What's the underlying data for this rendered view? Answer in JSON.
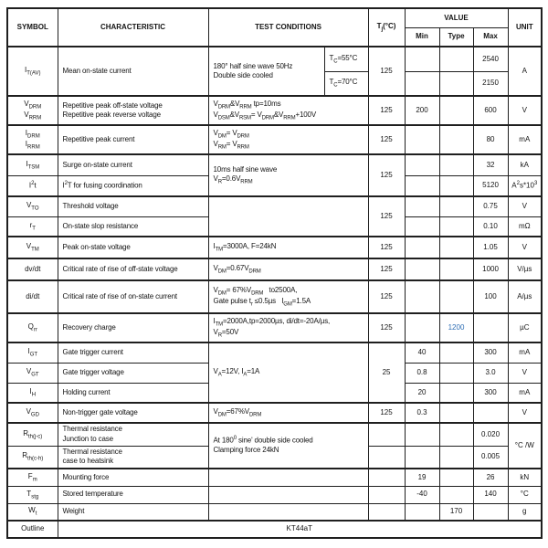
{
  "colors": {
    "border": "#1f1f1f",
    "text": "#141414",
    "accent_blue": "#2e6db4",
    "page_bg": "#ffffff"
  },
  "header": {
    "symbol": "SYMBOL",
    "characteristic": "CHARACTERISTIC",
    "test_conditions": "TEST CONDITIONS",
    "tj": "T_{j}(°C)",
    "value": "VALUE",
    "min": "Min",
    "type": "Type",
    "max": "Max",
    "unit": "UNIT"
  },
  "rows": {
    "itav": {
      "symbol": "I_{T(AV)}",
      "characteristic": "Mean on-state current",
      "conditions": "180° half sine wave 50Hz\nDouble side cooled",
      "cond_case1": "T_{C}=55°C",
      "cond_case2": "T_{C}=70°C",
      "tj": "125",
      "max1": "2540",
      "max2": "2150",
      "unit": "A"
    },
    "vdrm": {
      "symbol": "V_{DRM}\nV_{RRM}",
      "characteristic": "Repetitive peak off-state voltage\nRepetitive peak reverse voltage",
      "conditions": "V_{DRM}&V_{RRM} tp=10ms\nV_{DSM}&V_{RSM}= V_{DRM}&V_{RRM}+100V",
      "tj": "125",
      "min": "200",
      "max": "600",
      "unit": "V"
    },
    "idrm": {
      "symbol": "I_{DRM}\nI_{RRM}",
      "characteristic": "Repetitive peak current",
      "conditions": "V_{DM}= V_{DRM}\nV_{RM}= V_{RRM}",
      "tj": "125",
      "max": "80",
      "unit": "mA"
    },
    "itsm": {
      "symbol": "I_{TSM}",
      "characteristic": "Surge on-state current",
      "conditions": "10ms half sine wave\nV_{R}=0.6V_{RRM}",
      "tj": "125",
      "max": "32",
      "unit": "kA"
    },
    "i2t": {
      "symbol": "I^{2}t",
      "characteristic": "I^{2}T for fusing coordination",
      "max": "5120",
      "unit": "A^{2}s*10^{3}"
    },
    "vto": {
      "symbol": "V_{TO}",
      "characteristic": "Threshold voltage",
      "tj": "125",
      "max": "0.75",
      "unit": "V"
    },
    "rt": {
      "symbol": "r_{T}",
      "characteristic": "On-state slop resistance",
      "max": "0.10",
      "unit": "mΩ"
    },
    "vtm": {
      "symbol": "V_{TM}",
      "characteristic": "Peak on-state voltage",
      "conditions": "I_{TM}=3000A, F=24kN",
      "tj": "125",
      "max": "1.05",
      "unit": "V"
    },
    "dvdt": {
      "symbol": "dv/dt",
      "characteristic": "Critical rate of rise of off-state voltage",
      "conditions": "V_{DM}=0.67V_{DRM}",
      "tj": "125",
      "max": "1000",
      "unit": "V/µs"
    },
    "didt": {
      "symbol": "di/dt",
      "characteristic": "Critical rate of rise of on-state current",
      "conditions": "V_{DM}= 67%V_{DRM}   to2500A,\nGate pulse t_{r} ≤0.5µs   I_{GM}=1.5A",
      "tj": "125",
      "max": "100",
      "unit": "A/µs"
    },
    "qrr": {
      "symbol": "Q_{rr}",
      "characteristic": "Recovery charge",
      "conditions": "I_{TM}=2000A,tp=2000µs, di/dt=-20A/µs,\nV_{R}=50V",
      "tj": "125",
      "type": "1200",
      "unit": "µC"
    },
    "igt": {
      "symbol": "I_{GT}",
      "characteristic": "Gate trigger current",
      "conditions": "V_{A}=12V, I_{A}=1A",
      "tj": "25",
      "min": "40",
      "max": "300",
      "unit": "mA"
    },
    "vgt": {
      "symbol": "V_{GT}",
      "characteristic": "Gate trigger voltage",
      "min": "0.8",
      "max": "3.0",
      "unit": "V"
    },
    "ih": {
      "symbol": "I_{H}",
      "characteristic": "Holding current",
      "min": "20",
      "max": "300",
      "unit": "mA"
    },
    "vgd": {
      "symbol": "V_{GD}",
      "characteristic": "Non-trigger gate voltage",
      "conditions": "V_{DM}=67%V_{DRM}",
      "tj": "125",
      "min": "0.3",
      "unit": "V"
    },
    "rthjc": {
      "symbol": "R_{th(j-c)}",
      "characteristic": "Thermal resistance\nJunction to case",
      "conditions": "At 180^{0} sine' double side cooled\nClamping force 24kN",
      "max": "0.020",
      "unit": "°C /W"
    },
    "rthch": {
      "symbol": "R_{th(c-h)}",
      "characteristic": "Thermal resistance\ncase to heatsink",
      "max": "0.005"
    },
    "fm": {
      "symbol": "F_{m}",
      "characteristic": "Mounting force",
      "min": "19",
      "max": "26",
      "unit": "kN"
    },
    "tstg": {
      "symbol": "T_{stg}",
      "characteristic": "Stored temperature",
      "min": "-40",
      "max": "140",
      "unit": "°C"
    },
    "wt": {
      "symbol": "W_{t}",
      "characteristic": "Weight",
      "type": "170",
      "unit": "g"
    },
    "outline": {
      "symbol": "Outline",
      "value": "KT44aT"
    }
  }
}
